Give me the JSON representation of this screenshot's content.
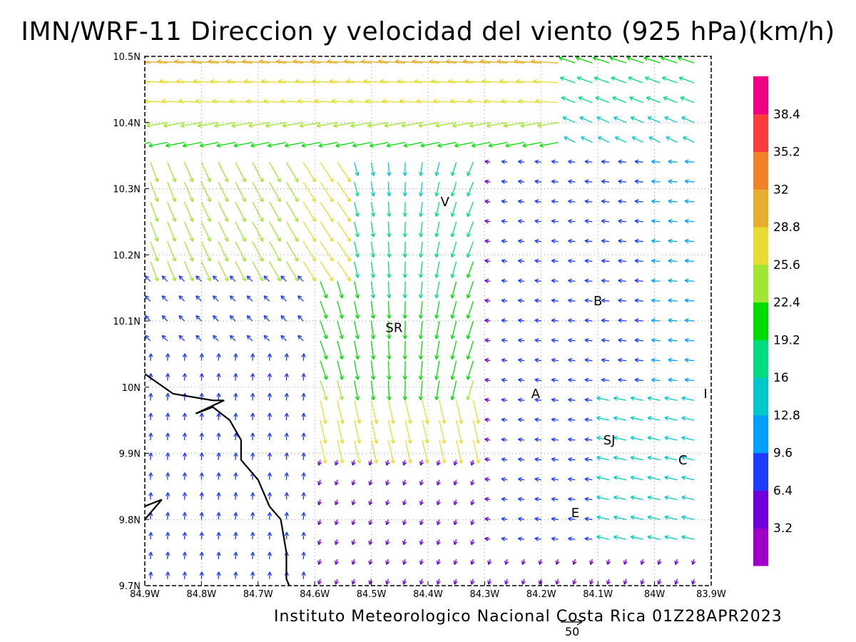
{
  "header": {
    "title": "IMN/WRF-11 Direccion y velocidad del viento (925 hPa)(km/h)"
  },
  "footer": {
    "credit": "Instituto Meteorologico Nacional Costa Rica 01Z28APR2023",
    "reference_vector_label": "50"
  },
  "map": {
    "lon_range": [
      -84.9,
      -83.9
    ],
    "lat_range": [
      9.7,
      10.5
    ],
    "lon_ticks": [
      {
        "value": -84.9,
        "label": "84.9W"
      },
      {
        "value": -84.8,
        "label": "84.8W"
      },
      {
        "value": -84.7,
        "label": "84.7W"
      },
      {
        "value": -84.6,
        "label": "84.6W"
      },
      {
        "value": -84.5,
        "label": "84.5W"
      },
      {
        "value": -84.4,
        "label": "84.4W"
      },
      {
        "value": -84.3,
        "label": "84.3W"
      },
      {
        "value": -84.2,
        "label": "84.2W"
      },
      {
        "value": -84.1,
        "label": "84.1W"
      },
      {
        "value": -84.0,
        "label": "84W"
      },
      {
        "value": -83.9,
        "label": "83.9W"
      }
    ],
    "lat_ticks": [
      {
        "value": 10.5,
        "label": "10.5N"
      },
      {
        "value": 10.4,
        "label": "10.4N"
      },
      {
        "value": 10.3,
        "label": "10.3N"
      },
      {
        "value": 10.2,
        "label": "10.2N"
      },
      {
        "value": 10.1,
        "label": "10.1N"
      },
      {
        "value": 10.0,
        "label": "10N"
      },
      {
        "value": 9.9,
        "label": "9.9N"
      },
      {
        "value": 9.8,
        "label": "9.8N"
      },
      {
        "value": 9.7,
        "label": "9.7N"
      }
    ],
    "places": [
      {
        "label": "V",
        "lon": -84.37,
        "lat": 10.28
      },
      {
        "label": "B",
        "lon": -84.1,
        "lat": 10.13
      },
      {
        "label": "SR",
        "lon": -84.46,
        "lat": 10.09
      },
      {
        "label": "A",
        "lon": -84.21,
        "lat": 9.99
      },
      {
        "label": "I",
        "lon": -83.91,
        "lat": 9.99
      },
      {
        "label": "SJ",
        "lon": -84.08,
        "lat": 9.92
      },
      {
        "label": "C",
        "lon": -83.95,
        "lat": 9.89
      },
      {
        "label": "E",
        "lon": -84.14,
        "lat": 9.81
      }
    ],
    "coastline": [
      [
        -84.9,
        10.02
      ],
      [
        -84.85,
        9.99
      ],
      [
        -84.78,
        9.98
      ],
      [
        -84.76,
        9.98
      ],
      [
        -84.81,
        9.96
      ],
      [
        -84.78,
        9.97
      ],
      [
        -84.75,
        9.95
      ],
      [
        -84.73,
        9.92
      ],
      [
        -84.73,
        9.89
      ],
      [
        -84.7,
        9.86
      ],
      [
        -84.68,
        9.82
      ],
      [
        -84.66,
        9.8
      ],
      [
        -84.65,
        9.75
      ],
      [
        -84.65,
        9.71
      ],
      [
        -84.64,
        9.69
      ]
    ],
    "coastline_2": [
      [
        -84.9,
        9.82
      ],
      [
        -84.87,
        9.83
      ],
      [
        -84.9,
        9.8
      ]
    ],
    "wind_field_estimated": [
      {
        "region": "northern band 10.35N-10.5N",
        "dir_to_deg": 100,
        "speed_kmh": 28
      },
      {
        "region": "northwest 10.2N-10.35N",
        "dir_to_deg": 150,
        "speed_kmh": 24
      },
      {
        "region": "central convergence near SR",
        "dir_to_deg": 190,
        "speed_kmh": 22
      },
      {
        "region": "east central valley",
        "dir_to_deg": 280,
        "speed_kmh": 6
      },
      {
        "region": "southwest Pacific side",
        "dir_to_deg": 0,
        "speed_kmh": 8
      },
      {
        "region": "southeast near SJ/C",
        "dir_to_deg": 290,
        "speed_kmh": 15
      }
    ]
  },
  "colorbar": {
    "labels": [
      "3.2",
      "6.4",
      "9.6",
      "12.8",
      "16",
      "19.2",
      "22.4",
      "25.6",
      "28.8",
      "32",
      "35.2",
      "38.4"
    ],
    "colors": [
      "#a000c8",
      "#6e00dc",
      "#1e3cff",
      "#00a0ff",
      "#00c8c8",
      "#00dc82",
      "#00dc00",
      "#a0e632",
      "#e6dc32",
      "#e6af2d",
      "#f08228",
      "#fa3c3c",
      "#f00082"
    ]
  }
}
